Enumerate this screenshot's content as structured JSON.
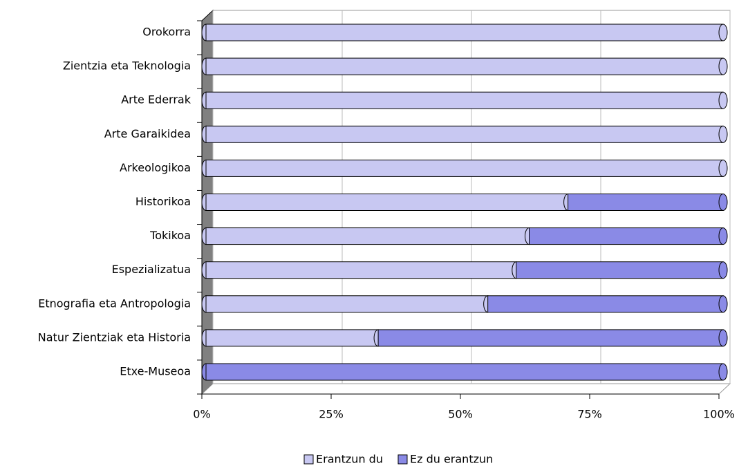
{
  "chart_data": {
    "type": "stacked_bar_horizontal",
    "categories": [
      "Orokorra",
      "Zientzia eta Teknologia",
      "Arte Ederrak",
      "Arte Garaikidea",
      "Arkeologikoa",
      "Historikoa",
      "Tokikoa",
      "Espezializatua",
      "Etnografia eta Antropologia",
      "Natur Zientziak eta Historia",
      "Etxe-Museoa"
    ],
    "series": [
      {
        "name": "Erantzun du",
        "color": "#c8c8f2",
        "values": [
          100,
          100,
          100,
          100,
          100,
          70,
          62.5,
          60,
          54.5,
          33.3,
          0
        ]
      },
      {
        "name": "Ez du erantzun",
        "color": "#8a8ae6",
        "values": [
          0,
          0,
          0,
          0,
          0,
          30,
          37.5,
          40,
          45.5,
          66.7,
          100
        ]
      }
    ],
    "xlim": [
      0,
      100
    ],
    "xticks": [
      {
        "value": 0,
        "label": "0%"
      },
      {
        "value": 25,
        "label": "25%"
      },
      {
        "value": 50,
        "label": "50%"
      },
      {
        "value": 75,
        "label": "75%"
      },
      {
        "value": 100,
        "label": "100%"
      }
    ],
    "grid": true,
    "legend": "bottom"
  }
}
